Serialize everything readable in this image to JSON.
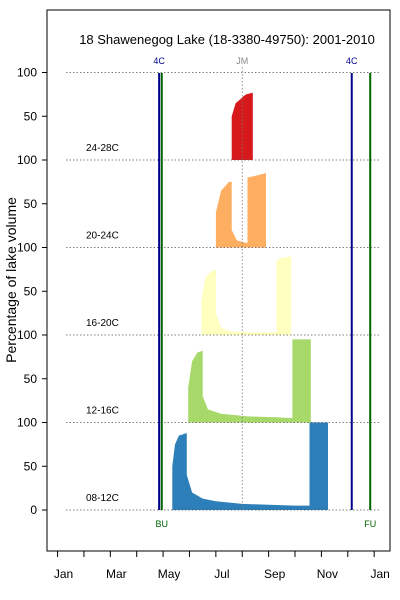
{
  "chart_data": {
    "type": "area",
    "title": "18 Shawenegog Lake (18-3380-49750): 2001-2010",
    "ylabel": "Percentage of lake volume",
    "xlabel": "",
    "x_months": [
      "Jan",
      "Mar",
      "May",
      "Jul",
      "Sep",
      "Nov",
      "Jan"
    ],
    "x_month_positions": [
      1,
      3,
      5,
      7,
      9,
      11,
      13
    ],
    "xlim": [
      0.6,
      13.6
    ],
    "y_ticks": [
      0,
      50,
      100
    ],
    "bands": [
      {
        "label": "08-12C",
        "color": "#2c7fb8",
        "points": [
          [
            5.35,
            0
          ],
          [
            5.35,
            50
          ],
          [
            5.45,
            75
          ],
          [
            5.6,
            85
          ],
          [
            5.9,
            88
          ],
          [
            5.9,
            40
          ],
          [
            6.1,
            20
          ],
          [
            6.5,
            13
          ],
          [
            7.0,
            10
          ],
          [
            8.0,
            7
          ],
          [
            9.0,
            6
          ],
          [
            10.0,
            5
          ],
          [
            10.55,
            5
          ],
          [
            10.55,
            100
          ],
          [
            11.25,
            100
          ],
          [
            11.25,
            0
          ]
        ]
      },
      {
        "label": "12-16C",
        "color": "#a6d96a",
        "points": [
          [
            5.95,
            0
          ],
          [
            5.95,
            40
          ],
          [
            6.1,
            70
          ],
          [
            6.3,
            80
          ],
          [
            6.5,
            82
          ],
          [
            6.5,
            30
          ],
          [
            6.7,
            15
          ],
          [
            7.2,
            10
          ],
          [
            8.2,
            7
          ],
          [
            9.3,
            6
          ],
          [
            9.9,
            5
          ],
          [
            9.9,
            95
          ],
          [
            10.6,
            95
          ],
          [
            10.6,
            0
          ]
        ]
      },
      {
        "label": "16-20C",
        "color": "#ffffbf",
        "points": [
          [
            6.45,
            0
          ],
          [
            6.45,
            40
          ],
          [
            6.6,
            65
          ],
          [
            6.8,
            72
          ],
          [
            7.0,
            75
          ],
          [
            7.0,
            25
          ],
          [
            7.2,
            8
          ],
          [
            7.6,
            4
          ],
          [
            8.4,
            3
          ],
          [
            9.3,
            3
          ],
          [
            9.3,
            85
          ],
          [
            9.5,
            88
          ],
          [
            9.85,
            90
          ],
          [
            9.85,
            0
          ]
        ]
      },
      {
        "label": "20-24C",
        "color": "#fdae61",
        "points": [
          [
            7.0,
            0
          ],
          [
            7.0,
            40
          ],
          [
            7.2,
            65
          ],
          [
            7.5,
            75
          ],
          [
            7.6,
            75
          ],
          [
            7.6,
            20
          ],
          [
            7.8,
            8
          ],
          [
            8.2,
            5
          ],
          [
            8.2,
            80
          ],
          [
            8.5,
            82
          ],
          [
            8.9,
            85
          ],
          [
            8.9,
            0
          ]
        ]
      },
      {
        "label": "24-28C",
        "color": "#d7191c",
        "points": [
          [
            7.6,
            0
          ],
          [
            7.6,
            50
          ],
          [
            7.75,
            65
          ],
          [
            7.95,
            70
          ],
          [
            8.05,
            73
          ],
          [
            8.15,
            75
          ],
          [
            8.4,
            77
          ],
          [
            8.4,
            0
          ]
        ]
      }
    ],
    "markers": [
      {
        "label": "4C",
        "x": 4.85,
        "color": "#00008b",
        "position": "top"
      },
      {
        "label": "JM",
        "x": 8.0,
        "color": "#888888",
        "position": "top",
        "style": "dotted"
      },
      {
        "label": "4C",
        "x": 12.15,
        "color": "#00008b",
        "position": "top"
      },
      {
        "label": "BU",
        "x": 4.95,
        "color": "#006400",
        "position": "bottom"
      },
      {
        "label": "FU",
        "x": 12.85,
        "color": "#006400",
        "position": "bottom"
      }
    ],
    "grid": "dotted horizontal at 100 per band",
    "legend": "none"
  }
}
